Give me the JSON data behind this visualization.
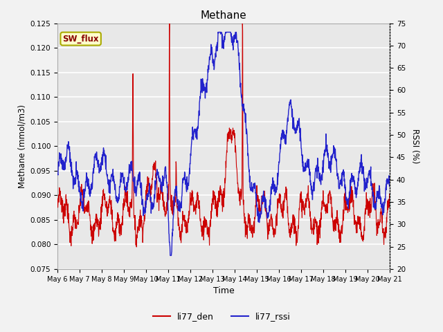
{
  "title": "Methane",
  "xlabel": "Time",
  "ylabel_left": "Methane (mmol/m3)",
  "ylabel_right": "RSSI (%)",
  "ylim_left": [
    0.075,
    0.125
  ],
  "ylim_right": [
    20,
    75
  ],
  "yticks_left": [
    0.075,
    0.08,
    0.085,
    0.09,
    0.095,
    0.1,
    0.105,
    0.11,
    0.115,
    0.12,
    0.125
  ],
  "yticks_right": [
    20,
    25,
    30,
    35,
    40,
    45,
    50,
    55,
    60,
    65,
    70,
    75
  ],
  "xtick_labels": [
    "May 6",
    "May 7",
    "May 8",
    "May 9",
    "May 10",
    "May 11",
    "May 12",
    "May 13",
    "May 14",
    "May 15",
    "May 16",
    "May 17",
    "May 18",
    "May 19",
    "May 20",
    "May 21"
  ],
  "color_red": "#cc0000",
  "color_blue": "#2222cc",
  "color_box_bg": "#ffffcc",
  "color_box_border": "#aaaa00",
  "color_box_text": "#880000",
  "box_label": "SW_flux",
  "legend_labels": [
    "li77_den",
    "li77_rssi"
  ],
  "bg_color": "#e8e8e8",
  "fig_bg": "#f2f2f2",
  "grid_color": "#ffffff"
}
